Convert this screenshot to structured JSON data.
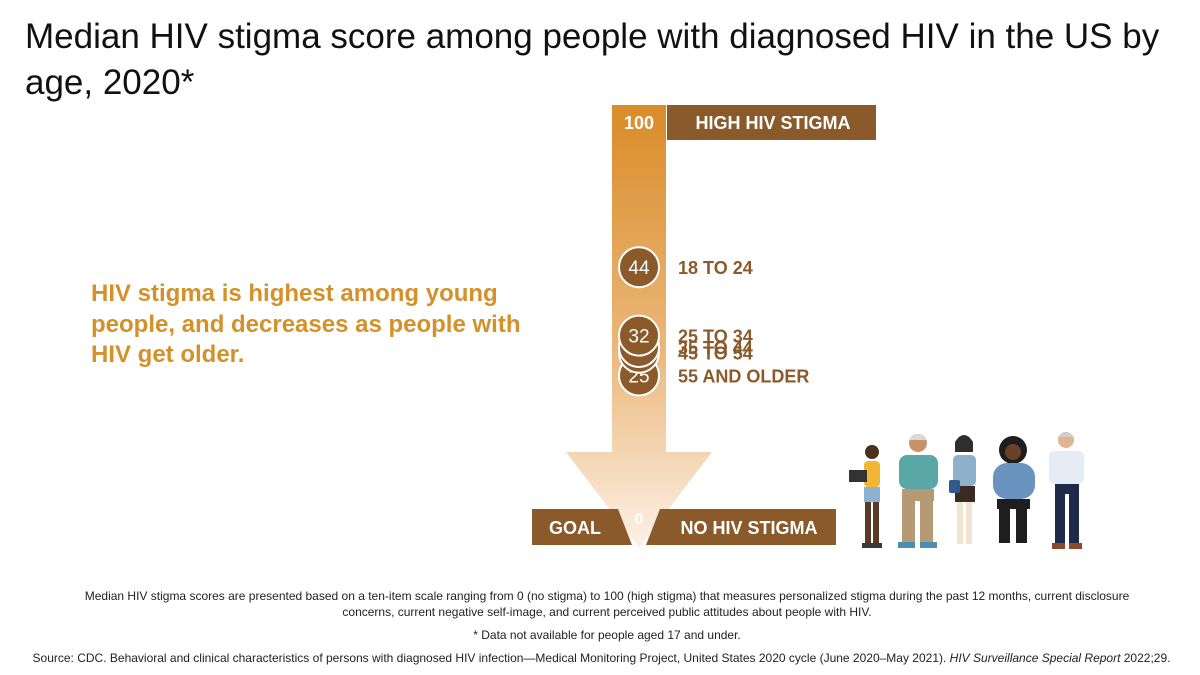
{
  "title": "Median HIV stigma score among people with diagnosed HIV in the US by age, 2020*",
  "key_message": "HIV stigma is highest among young people, and decreases as people with HIV get older.",
  "scale": {
    "top_value": "100",
    "top_label": "HIGH HIV STIGMA",
    "bottom_value": "0",
    "bottom_left_label": "GOAL",
    "bottom_right_label": "NO HIV STIGMA"
  },
  "chart_data": {
    "type": "scatter",
    "title": "Median HIV stigma score among people with diagnosed HIV in the US by age, 2020*",
    "ylim": [
      0,
      100
    ],
    "categories": [
      "18 TO 24",
      "25 TO 34",
      "35 TO 44",
      "45 TO 54",
      "55 AND OLDER"
    ],
    "values": [
      44,
      32,
      30,
      29,
      25
    ],
    "labels": [
      "44",
      "32",
      "30",
      "29",
      "25"
    ]
  },
  "footnotes": {
    "method": "Median HIV stigma scores are presented based on a ten-item scale ranging from 0 (no stigma) to 100 (high stigma) that measures personalized stigma during the past 12 months, current disclosure concerns, current negative self-image, and current perceived public attitudes about people with HIV.",
    "age": "* Data not available for people aged 17 and under.",
    "source_main": "Source: CDC. Behavioral and clinical characteristics of persons with diagnosed HIV infection—Medical Monitoring Project, United States 2020 cycle (June 2020–May 2021). ",
    "source_journal": "HIV Surveillance Special Report",
    "source_end": " 2022;29."
  },
  "colors": {
    "brown": "#8b5a2b",
    "orange": "#d4912a",
    "arrow_top": "#d98c28",
    "arrow_bottom": "#fbeadb"
  }
}
